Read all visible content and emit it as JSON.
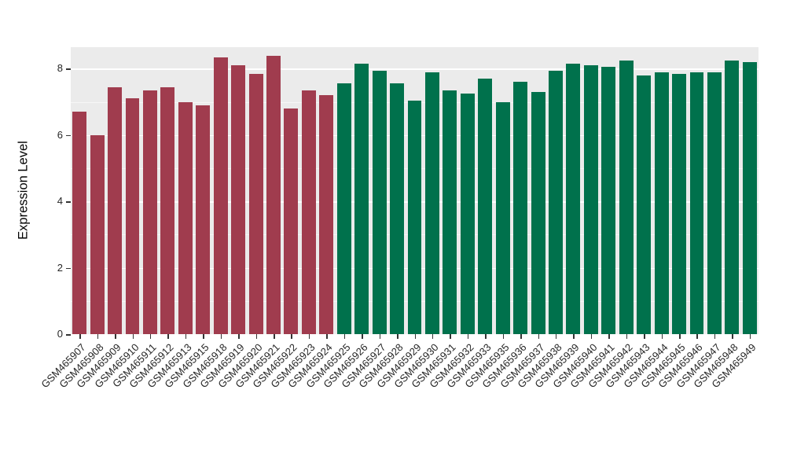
{
  "figure": {
    "background": "#FFFFFF",
    "panel_background": "#EBEBEB",
    "grid_color": "#FFFFFF",
    "axis_text_color": "#262626",
    "tick_mark_color": "#333333"
  },
  "chart_data": {
    "type": "bar",
    "title": "",
    "xlabel": "",
    "ylabel": "Expression Level",
    "ylim": [
      0,
      8.65
    ],
    "yticks": [
      0,
      2,
      4,
      6,
      8
    ],
    "yticks_minor": [
      1,
      3,
      5,
      7
    ],
    "grid": true,
    "legend": "none",
    "colors": [
      "#A03C4E",
      "#00714C"
    ],
    "categories": [
      "GSM465907",
      "GSM465908",
      "GSM465909",
      "GSM465910",
      "GSM465911",
      "GSM465912",
      "GSM465913",
      "GSM465915",
      "GSM465918",
      "GSM465919",
      "GSM465920",
      "GSM465921",
      "GSM465922",
      "GSM465923",
      "GSM465924",
      "GSM465925",
      "GSM465926",
      "GSM465927",
      "GSM465928",
      "GSM465929",
      "GSM465930",
      "GSM465931",
      "GSM465932",
      "GSM465933",
      "GSM465935",
      "GSM465936",
      "GSM465937",
      "GSM465938",
      "GSM465939",
      "GSM465940",
      "GSM465941",
      "GSM465942",
      "GSM465943",
      "GSM465944",
      "GSM465945",
      "GSM465946",
      "GSM465947",
      "GSM465948",
      "GSM465949"
    ],
    "values": [
      6.7,
      6.0,
      7.45,
      7.1,
      7.35,
      7.45,
      7.0,
      6.9,
      8.35,
      8.1,
      7.85,
      8.4,
      6.8,
      7.35,
      7.2,
      7.55,
      8.15,
      7.95,
      7.55,
      7.05,
      7.9,
      7.35,
      7.25,
      7.7,
      7.0,
      7.6,
      7.3,
      7.95,
      8.15,
      8.1,
      8.05,
      8.25,
      7.8,
      7.9,
      7.85,
      7.9,
      7.9,
      8.25,
      8.2
    ],
    "color_index": [
      0,
      0,
      0,
      0,
      0,
      0,
      0,
      0,
      0,
      0,
      0,
      0,
      0,
      0,
      0,
      1,
      1,
      1,
      1,
      1,
      1,
      1,
      1,
      1,
      1,
      1,
      1,
      1,
      1,
      1,
      1,
      1,
      1,
      1,
      1,
      1,
      1,
      1,
      1
    ]
  }
}
